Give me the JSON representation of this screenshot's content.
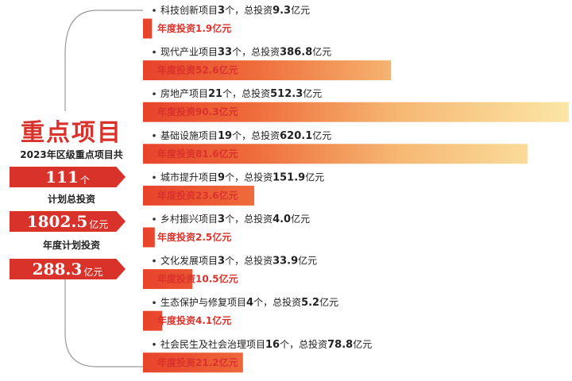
{
  "summary": {
    "title": "重点项目",
    "project_total_label": "2023年区级重点项目共",
    "project_count": "111",
    "project_count_unit": "个",
    "total_investment_label": "计划总投资",
    "total_investment": "1802.5",
    "total_investment_unit": "亿元",
    "annual_investment_label": "年度计划投资",
    "annual_investment": "288.3",
    "annual_investment_unit": "亿元"
  },
  "colors": {
    "accent": "#d9322b",
    "bar_start": "#e8432c",
    "bar_end": "#fbe6a6",
    "line": "#999999"
  },
  "chart_data": {
    "type": "bar",
    "orientation": "horizontal",
    "title": "",
    "value_label_prefix": "年度投资",
    "unit": "亿元",
    "categories": [
      {
        "text_a": "科技创新项目",
        "count": "3",
        "text_b": "个，总投资",
        "total": "9.3",
        "text_c": "亿元",
        "annual": 1.9,
        "bar_label": "年度投资1.9亿元"
      },
      {
        "text_a": "现代产业项目",
        "count": "33",
        "text_b": "个，总投资",
        "total": "386.8",
        "text_c": "亿元",
        "annual": 52.6,
        "bar_label": "年度投资52.6亿元"
      },
      {
        "text_a": "房地产项目",
        "count": "21",
        "text_b": "个，总投资",
        "total": "512.3",
        "text_c": "亿元",
        "annual": 90.3,
        "bar_label": "年度投资90.3亿元"
      },
      {
        "text_a": "基础设施项目",
        "count": "19",
        "text_b": "个，总投资",
        "total": "620.1",
        "text_c": "亿元",
        "annual": 81.6,
        "bar_label": "年度投资81.6亿元"
      },
      {
        "text_a": "城市提升项目",
        "count": "9",
        "text_b": "个，总投资",
        "total": "151.9",
        "text_c": "亿元",
        "annual": 23.6,
        "bar_label": "年度投资23.6亿元"
      },
      {
        "text_a": "乡村振兴项目",
        "count": "3",
        "text_b": "个，总投资",
        "total": "4.0",
        "text_c": "亿元",
        "annual": 2.5,
        "bar_label": "年度投资2.5亿元"
      },
      {
        "text_a": "文化发展项目",
        "count": "3",
        "text_b": "个，总投资",
        "total": "33.9",
        "text_c": "亿元",
        "annual": 10.5,
        "bar_label": "年度投资10.5亿元"
      },
      {
        "text_a": "生态保护与修复项目",
        "count": "4",
        "text_b": "个，总投资",
        "total": "5.2",
        "text_c": "亿元",
        "annual": 4.1,
        "bar_label": "年度投资4.1亿元"
      },
      {
        "text_a": "社会民生及社会治理项目",
        "count": "16",
        "text_b": "个，总投资",
        "total": "78.8",
        "text_c": "亿元",
        "annual": 21.2,
        "bar_label": "年度投资21.2亿元"
      }
    ]
  }
}
